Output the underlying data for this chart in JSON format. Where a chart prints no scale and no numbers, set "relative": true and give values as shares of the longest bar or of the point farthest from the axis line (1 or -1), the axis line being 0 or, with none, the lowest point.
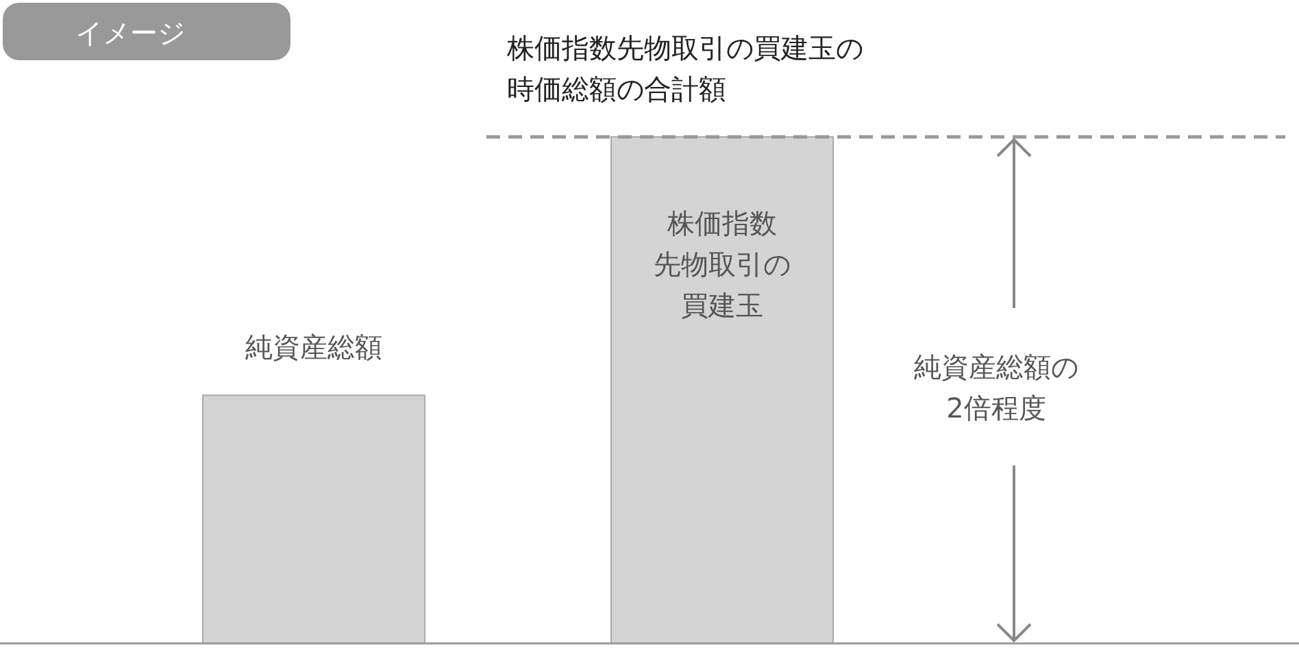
{
  "chart_data": {
    "type": "bar",
    "relative": true,
    "categories": [
      "純資産総額",
      "株価指数先物取引の買建玉"
    ],
    "values": [
      0.49,
      1
    ],
    "color": "#d4d4d4",
    "ref_lines": [
      {
        "axis": "y",
        "value": 1,
        "label": "株価指数先物取引の買建玉の時価総額の合計額",
        "color": "#999999",
        "line_style": "dashed"
      }
    ],
    "annotations": [
      "イメージ",
      "純資産総額の2倍程度"
    ]
  }
}
